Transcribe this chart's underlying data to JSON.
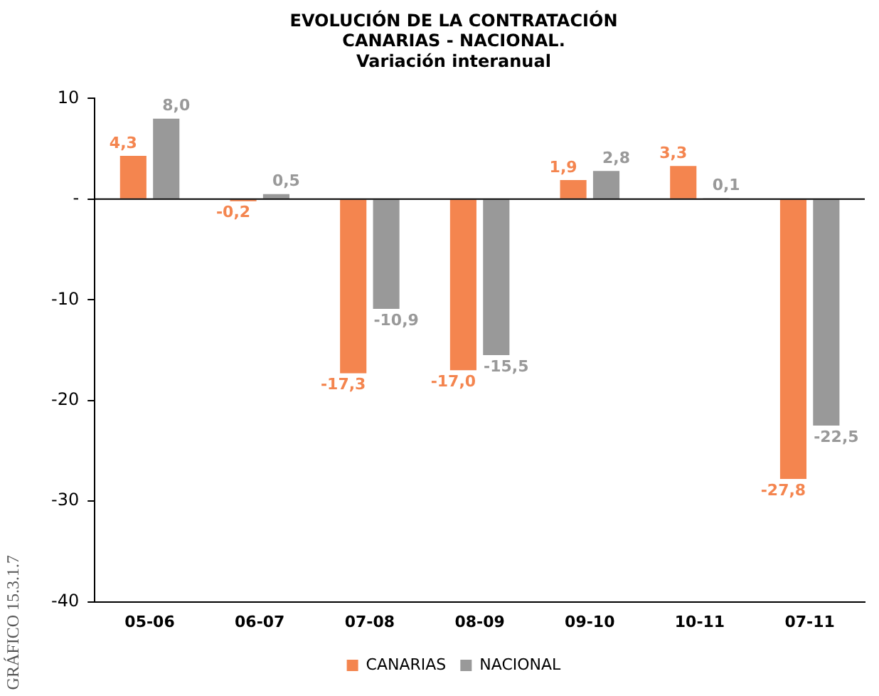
{
  "chart_data": {
    "type": "bar",
    "title": "EVOLUCIÓN DE LA CONTRATACIÓN\nCANARIAS - NACIONAL.",
    "subtitle": "Variación interanual",
    "categories": [
      "05-06",
      "06-07",
      "07-08",
      "08-09",
      "09-10",
      "10-11",
      "07-11"
    ],
    "series": [
      {
        "name": "CANARIAS",
        "color": "#f4854f",
        "values": [
          4.3,
          -0.2,
          -17.3,
          -17.0,
          1.9,
          3.3,
          -27.8
        ],
        "value_labels": [
          "4,3",
          "-0,2",
          "-17,3",
          "-17,0",
          "1,9",
          "3,3",
          "-27,8"
        ]
      },
      {
        "name": "NACIONAL",
        "color": "#999999",
        "values": [
          8.0,
          0.5,
          -10.9,
          -15.5,
          2.8,
          0.1,
          -22.5
        ],
        "value_labels": [
          "8,0",
          "0,5",
          "-10,9",
          "-15,5",
          "2,8",
          "0,1",
          "-22,5"
        ]
      }
    ],
    "ylim": [
      -40,
      10
    ],
    "yticks": [
      10,
      {
        "value": 0,
        "label": "-"
      },
      -10,
      -20,
      -30,
      -40
    ],
    "grid": false,
    "legend": "bottom",
    "ref_lines": [
      {
        "axis": "y",
        "value": 0,
        "color": "#000000"
      }
    ],
    "annotations": [
      "GRÁFICO 15.3.1.7"
    ]
  }
}
